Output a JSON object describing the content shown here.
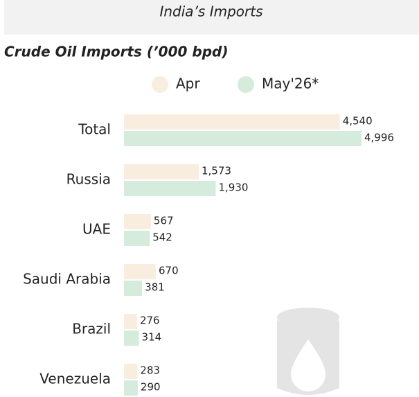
{
  "header": {
    "title": "India’s Imports"
  },
  "chart_data": {
    "type": "bar",
    "orientation": "horizontal",
    "title": "Crude Oil Imports (’000 bpd)",
    "categories": [
      "Total",
      "Russia",
      "UAE",
      "Saudi Arabia",
      "Brazil",
      "Venezuela"
    ],
    "series": [
      {
        "name": "Apr",
        "color": "#f9ede0",
        "values": [
          4540,
          1573,
          567,
          670,
          276,
          283
        ],
        "value_labels": [
          "4,540",
          "1,573",
          "567",
          "670",
          "276",
          "283"
        ]
      },
      {
        "name": "May'26*",
        "color": "#d5ecdc",
        "values": [
          4996,
          1930,
          542,
          381,
          314,
          290
        ],
        "value_labels": [
          "4,996",
          "1,930",
          "542",
          "381",
          "314",
          "290"
        ]
      }
    ]
  }
}
